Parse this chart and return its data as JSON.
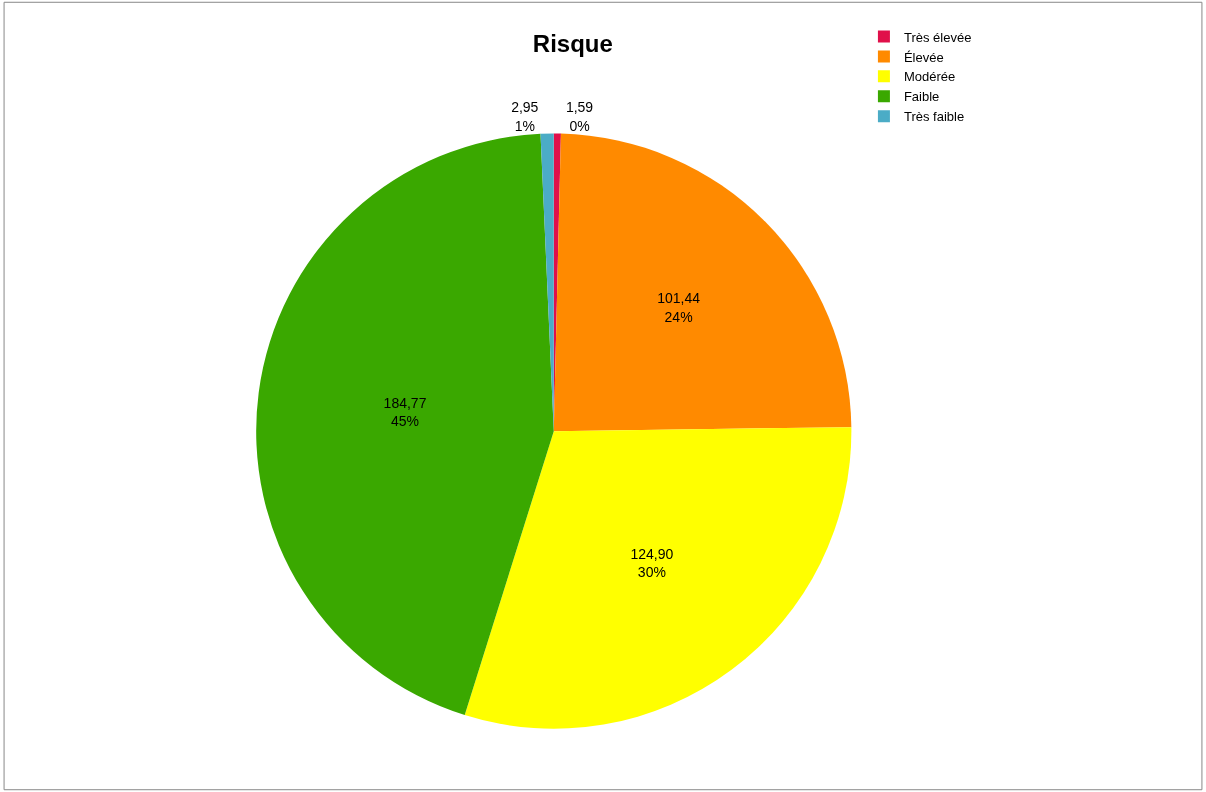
{
  "chart_data": {
    "type": "pie",
    "title": "Risque",
    "categories": [
      "Très élevée",
      "Élevée",
      "Modérée",
      "Faible",
      "Très faible"
    ],
    "values": [
      1.59,
      101.44,
      124.9,
      184.77,
      2.95
    ],
    "colors": [
      "#e0104a",
      "#ff8a00",
      "#ffff00",
      "#3aa800",
      "#4bacc6"
    ],
    "value_labels": [
      "1,59\n0%",
      "101,44\n24%",
      "124,90\n30%",
      "184,77\n45%",
      "2,95\n1%"
    ],
    "legend": "top right"
  }
}
